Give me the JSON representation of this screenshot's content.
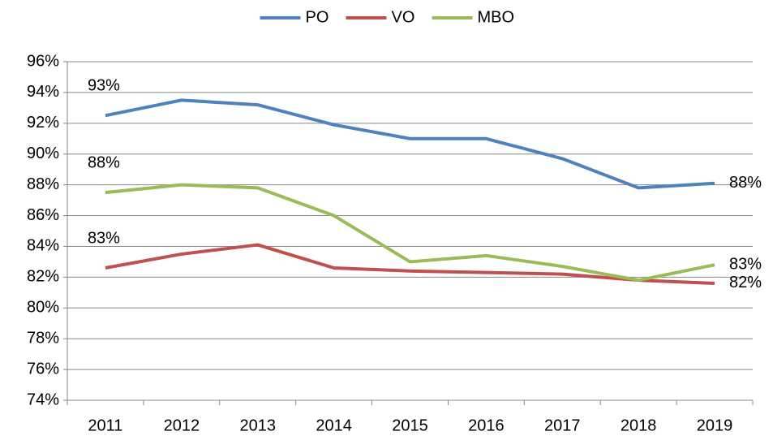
{
  "chart_data": {
    "type": "line",
    "categories": [
      "2011",
      "2012",
      "2013",
      "2014",
      "2015",
      "2016",
      "2017",
      "2018",
      "2019"
    ],
    "series": [
      {
        "name": "PO",
        "color": "#4f81bd",
        "values": [
          92.5,
          93.5,
          93.2,
          91.9,
          91.0,
          91.0,
          89.7,
          87.8,
          88.1
        ],
        "value_labels": [
          "93%",
          null,
          null,
          null,
          null,
          null,
          null,
          null,
          "88%"
        ]
      },
      {
        "name": "VO",
        "color": "#c0504d",
        "values": [
          82.6,
          83.5,
          84.1,
          82.6,
          82.4,
          82.3,
          82.2,
          81.8,
          81.6
        ],
        "value_labels": [
          "83%",
          null,
          null,
          null,
          null,
          null,
          null,
          null,
          "82%"
        ]
      },
      {
        "name": "MBO",
        "color": "#9bbb59",
        "values": [
          87.5,
          88.0,
          87.8,
          86.0,
          83.0,
          83.4,
          82.7,
          81.8,
          82.8
        ],
        "value_labels": [
          "88%",
          null,
          null,
          null,
          null,
          null,
          null,
          null,
          "83%"
        ]
      }
    ],
    "ylim": [
      74,
      96
    ],
    "yticks": [
      {
        "value": 74,
        "label": "74%"
      },
      {
        "value": 76,
        "label": "76%"
      },
      {
        "value": 78,
        "label": "78%"
      },
      {
        "value": 80,
        "label": "80%"
      },
      {
        "value": 82,
        "label": "82%"
      },
      {
        "value": 84,
        "label": "84%"
      },
      {
        "value": 86,
        "label": "86%"
      },
      {
        "value": 88,
        "label": "88%"
      },
      {
        "value": 90,
        "label": "90%"
      },
      {
        "value": 92,
        "label": "92%"
      },
      {
        "value": 94,
        "label": "94%"
      },
      {
        "value": 96,
        "label": "96%"
      }
    ],
    "grid": true,
    "legend": "top"
  }
}
